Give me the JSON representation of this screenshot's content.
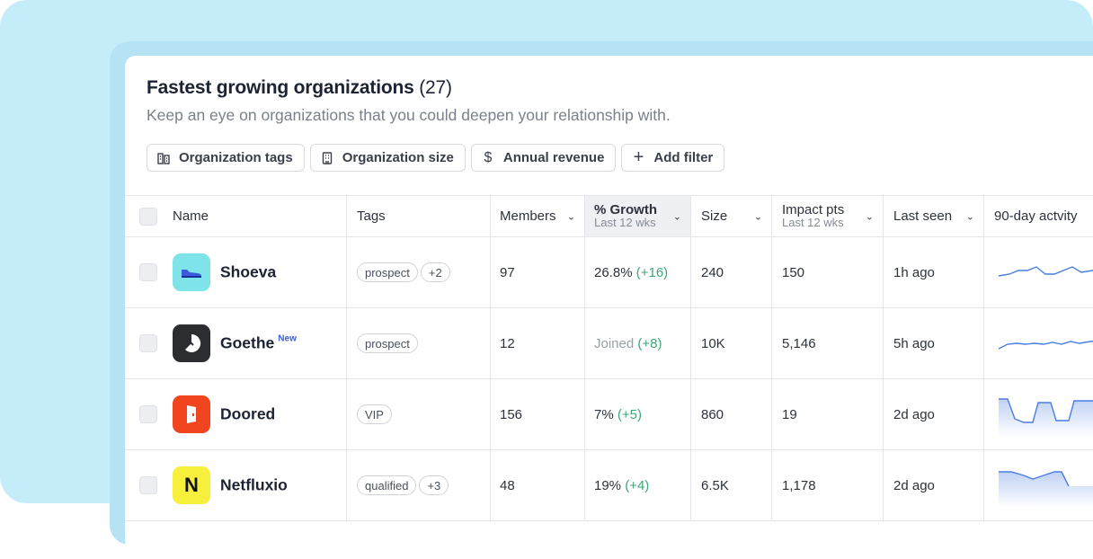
{
  "header": {
    "title": "Fastest growing organizations",
    "count": "(27)",
    "subtitle": "Keep an eye on organizations that you could deepen your relationship with."
  },
  "filters": [
    {
      "label": "Organization tags",
      "icon": "tags-building-icon"
    },
    {
      "label": "Organization size",
      "icon": "building-icon"
    },
    {
      "label": "Annual revenue",
      "icon": "dollar-icon"
    },
    {
      "label": "Add filter",
      "icon": "plus-icon"
    }
  ],
  "columns": {
    "name": "Name",
    "tags": "Tags",
    "members": "Members",
    "growth": "% Growth",
    "growth_sub": "Last 12 wks",
    "size": "Size",
    "impact": "Impact pts",
    "impact_sub": "Last 12 wks",
    "last_seen": "Last seen",
    "activity": "90-day actvity"
  },
  "rows": [
    {
      "name": "Shoeva",
      "badge": "",
      "tags": [
        "prospect",
        "+2"
      ],
      "members": "97",
      "growth": "26.8%",
      "growth_delta": "(+16)",
      "size": "240",
      "impact": "150",
      "last_seen": "1h ago",
      "logo_color": "#7fe3ea"
    },
    {
      "name": "Goethe",
      "badge": "New",
      "tags": [
        "prospect"
      ],
      "members": "12",
      "growth": "Joined",
      "growth_delta": "(+8)",
      "size": "10K",
      "impact": "5,146",
      "last_seen": "5h ago",
      "logo_color": "#2b2d31"
    },
    {
      "name": "Doored",
      "badge": "",
      "tags": [
        "VIP"
      ],
      "members": "156",
      "growth": "7%",
      "growth_delta": "(+5)",
      "size": "860",
      "impact": "19",
      "last_seen": "2d ago",
      "logo_color": "#f0451f"
    },
    {
      "name": "Netfluxio",
      "badge": "",
      "tags": [
        "qualified",
        "+3"
      ],
      "members": "48",
      "growth": "19%",
      "growth_delta": "(+4)",
      "size": "6.5K",
      "impact": "1,178",
      "last_seen": "2d ago",
      "logo_color": "#f6f03c"
    }
  ],
  "colors": {
    "accent": "#3b5bdb",
    "growth_positive": "#3aa876",
    "sparkline": "#4a7de0"
  }
}
